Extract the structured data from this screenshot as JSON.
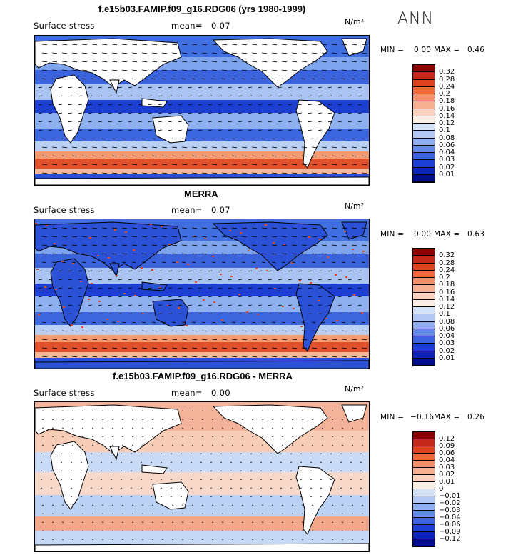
{
  "season": "ANN",
  "panels": [
    {
      "title": "f.e15b03.FAMIP.f09_g16.RDG06 (yrs 1980-1999)",
      "variable": "Surface stress",
      "mean_label": "mean=",
      "mean_value": "0.07",
      "units": "N/m²",
      "min_label": "MIN =",
      "min_value": "0.00",
      "max_label": "MAX =",
      "max_value": "0.46",
      "colorbar_labels": [
        "0.32",
        "0.28",
        "0.24",
        "0.2",
        "0.18",
        "0.16",
        "0.14",
        "0.12",
        "0.1",
        "0.08",
        "0.06",
        "0.04",
        "0.03",
        "0.02",
        "0.01"
      ],
      "colorbar_colors": [
        "#8b0000",
        "#c4261a",
        "#e0431f",
        "#f26a3c",
        "#f4906a",
        "#f6b193",
        "#fad2bd",
        "#fbeee4",
        "#d4e3f7",
        "#b3c9f3",
        "#8faeef",
        "#6489e6",
        "#3d63e0",
        "#1d3fd8",
        "#0d24b8",
        "#000d8f"
      ]
    },
    {
      "title": "MERRA",
      "variable": "Surface stress",
      "mean_label": "mean=",
      "mean_value": "0.07",
      "units": "N/m²",
      "min_label": "MIN =",
      "min_value": "0.00",
      "max_label": "MAX =",
      "max_value": "0.63",
      "colorbar_labels": [
        "0.32",
        "0.28",
        "0.24",
        "0.2",
        "0.18",
        "0.16",
        "0.14",
        "0.12",
        "0.1",
        "0.08",
        "0.06",
        "0.04",
        "0.03",
        "0.02",
        "0.01"
      ],
      "colorbar_colors": [
        "#8b0000",
        "#c4261a",
        "#e0431f",
        "#f26a3c",
        "#f4906a",
        "#f6b193",
        "#fad2bd",
        "#fbeee4",
        "#d4e3f7",
        "#b3c9f3",
        "#8faeef",
        "#6489e6",
        "#3d63e0",
        "#1d3fd8",
        "#0d24b8",
        "#000d8f"
      ]
    },
    {
      "title": "f.e15b03.FAMIP.f09_g16.RDG06 - MERRA",
      "variable": "Surface stress",
      "mean_label": "mean=",
      "mean_value": "0.00",
      "units": "N/m²",
      "min_label": "MIN =",
      "min_value": "−0.16",
      "max_label": "MAX =",
      "max_value": "0.26",
      "colorbar_labels": [
        "0.12",
        "0.09",
        "0.06",
        "0.04",
        "0.03",
        "0.02",
        "0.01",
        "0",
        "−0.01",
        "−0.02",
        "−0.03",
        "−0.04",
        "−0.06",
        "−0.09",
        "−0.12"
      ],
      "colorbar_colors": [
        "#8b0000",
        "#c4261a",
        "#e0431f",
        "#f26a3c",
        "#f4906a",
        "#f6b193",
        "#fad2bd",
        "#fbeee4",
        "#d4e3f7",
        "#b3c9f3",
        "#8faeef",
        "#6489e6",
        "#3d63e0",
        "#1d3fd8",
        "#0d24b8",
        "#000d8f"
      ]
    }
  ],
  "chart_data": [
    {
      "type": "heatmap",
      "title": "f.e15b03.FAMIP.f09_g16.RDG06 (yrs 1980-1999)",
      "subtitle": "Surface stress",
      "units": "N/m²",
      "season": "ANN",
      "mean": 0.07,
      "min": 0.0,
      "max": 0.46,
      "contour_levels": [
        0.01,
        0.02,
        0.03,
        0.04,
        0.06,
        0.08,
        0.1,
        0.12,
        0.14,
        0.16,
        0.18,
        0.2,
        0.24,
        0.28,
        0.32
      ],
      "overlay": "wind stress vectors (arrows)"
    },
    {
      "type": "heatmap",
      "title": "MERRA",
      "subtitle": "Surface stress",
      "units": "N/m²",
      "mean": 0.07,
      "min": 0.0,
      "max": 0.63,
      "contour_levels": [
        0.01,
        0.02,
        0.03,
        0.04,
        0.06,
        0.08,
        0.1,
        0.12,
        0.14,
        0.16,
        0.18,
        0.2,
        0.24,
        0.28,
        0.32
      ],
      "overlay": "wind stress vectors (arrows)"
    },
    {
      "type": "heatmap",
      "title": "f.e15b03.FAMIP.f09_g16.RDG06 - MERRA",
      "subtitle": "Surface stress",
      "units": "N/m²",
      "mean": 0.0,
      "min": -0.16,
      "max": 0.26,
      "contour_levels": [
        -0.12,
        -0.09,
        -0.06,
        -0.04,
        -0.03,
        -0.02,
        -0.01,
        0,
        0.01,
        0.02,
        0.03,
        0.04,
        0.06,
        0.09,
        0.12
      ],
      "overlay": "difference vectors (arrows)"
    }
  ]
}
